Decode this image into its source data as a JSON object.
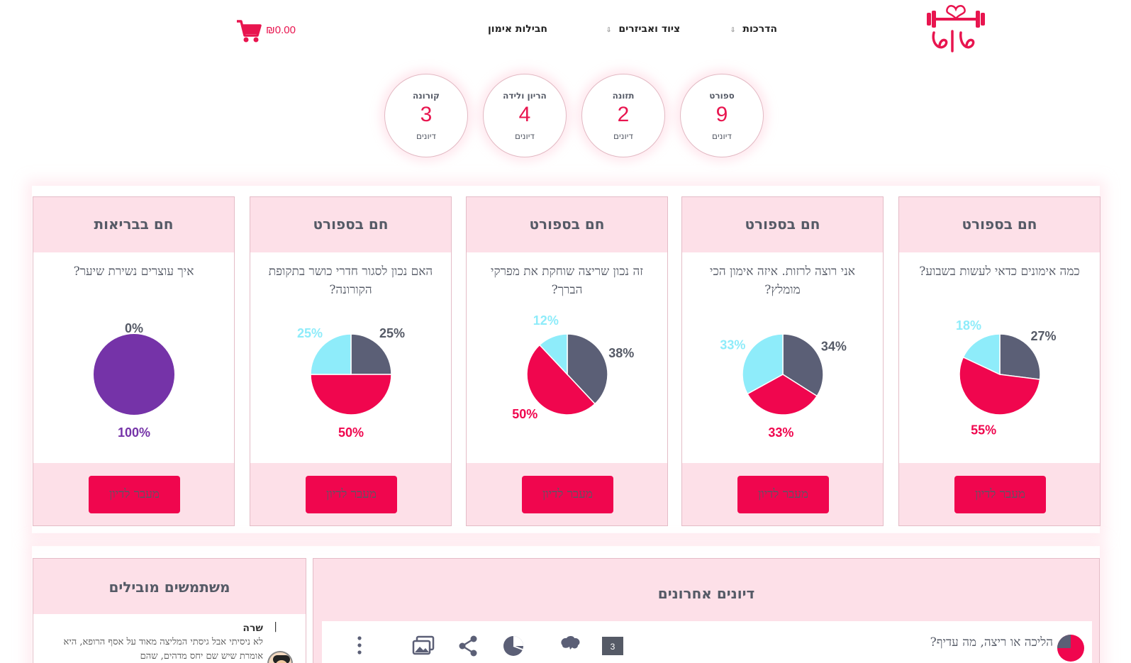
{
  "header": {
    "nav": [
      {
        "label": "הדרכות",
        "has_caret": true
      },
      {
        "label": "ציוד ואביזרים",
        "has_caret": true
      },
      {
        "label": "חבילות אימון",
        "has_caret": false
      }
    ],
    "cart_total": "₪0.00",
    "logo_icon": "dumbbell-heart-logo",
    "cart_icon": "cart-icon",
    "caret_glyph": "⇩"
  },
  "categories": [
    {
      "title": "ספורט",
      "count": "9",
      "label": "דיונים"
    },
    {
      "title": "תזונה",
      "count": "2",
      "label": "דיונים"
    },
    {
      "title": "הריון ולידה",
      "count": "4",
      "label": "דיונים"
    },
    {
      "title": "קורונה",
      "count": "3",
      "label": "דיונים"
    }
  ],
  "colors": {
    "accent": "#f0064e",
    "pink_bg": "#fde0e8",
    "slate": "#5b5f76",
    "light_blue": "#8eecfa",
    "purple": "#7533a8"
  },
  "polls": [
    {
      "category": "חם בספורט",
      "question": "כמה אימונים כדאי לעשות בשבוע?",
      "button": "מעבר לדיון",
      "chart_data": {
        "type": "pie",
        "values": [
          27,
          55,
          18
        ],
        "labels": [
          "27%",
          "55%",
          "18%"
        ],
        "colors": [
          "#5b5f76",
          "#f0064e",
          "#8eecfa"
        ]
      }
    },
    {
      "category": "חם בספורט",
      "question": "אני רוצה לרזות. איזה אימון הכי מומלץ?",
      "button": "מעבר לדיון",
      "chart_data": {
        "type": "pie",
        "values": [
          34,
          33,
          33
        ],
        "labels": [
          "34%",
          "33%",
          "33%"
        ],
        "colors": [
          "#5b5f76",
          "#f0064e",
          "#8eecfa"
        ]
      }
    },
    {
      "category": "חם בספורט",
      "question": "זה נכון שריצה שוחקת את מפרקי הברך?",
      "button": "מעבר לדיון",
      "chart_data": {
        "type": "pie",
        "values": [
          38,
          50,
          12
        ],
        "labels": [
          "38%",
          "50%",
          "12%"
        ],
        "colors": [
          "#5b5f76",
          "#f0064e",
          "#8eecfa"
        ]
      }
    },
    {
      "category": "חם בספורט",
      "question": "האם נכון לסגור חדרי כושר בתקופת הקורונה?",
      "button": "מעבר לדיון",
      "chart_data": {
        "type": "pie",
        "values": [
          25,
          50,
          25
        ],
        "labels": [
          "25%",
          "50%",
          "25%"
        ],
        "colors": [
          "#5b5f76",
          "#f0064e",
          "#8eecfa"
        ]
      }
    },
    {
      "category": "חם בבריאות",
      "question": "איך עוצרים נשירת שיער?",
      "button": "מעבר לדיון",
      "chart_data": {
        "type": "pie",
        "values": [
          0,
          100
        ],
        "labels": [
          "0%",
          "100%"
        ],
        "colors": [
          "#5b5f76",
          "#7533a8"
        ]
      }
    }
  ],
  "mobile_users": {
    "title": "משתמשים מובילים",
    "user": {
      "name": "שרה",
      "separator": "|",
      "text": "לא ניסיתי אבל גיסתי המליצה מאוד על אסף הרופא, היא אומרת שיש שם יחס מדהים, שהם"
    }
  },
  "recent": {
    "title": "דיונים אחרונים",
    "item": {
      "question": "הליכה או ריצה, מה עדיף?",
      "count": "3"
    }
  }
}
